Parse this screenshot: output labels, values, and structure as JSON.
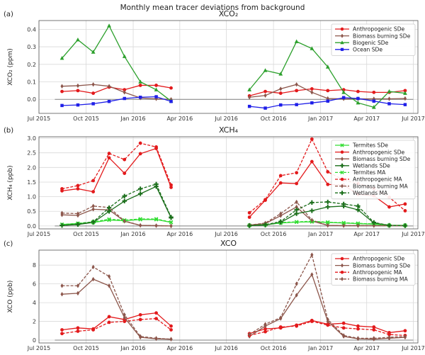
{
  "figure_title": "Monthly mean tracer deviations from background",
  "chart_data": [
    {
      "type": "line",
      "panel_label": "(a)",
      "title": "XCO₂",
      "ylabel": "XCO₂ (ppm)",
      "ylim": [
        -0.08,
        0.45
      ],
      "yticks": [
        0.0,
        0.1,
        0.2,
        0.3,
        0.4
      ],
      "ytick_labels": [
        "0.0",
        "0.1",
        "0.2",
        "0.3",
        "0.4"
      ],
      "xlim": [
        "2015-07-01",
        "2017-07-10"
      ],
      "xticks": [
        "Jul 2015",
        "Oct 2015",
        "Jan 2016",
        "Apr 2016",
        "Jul 2016",
        "Oct 2016",
        "Jan 2017",
        "Apr 2017",
        "Jul 2017"
      ],
      "grid": true,
      "legend_position": "top-right",
      "series": [
        {
          "name": "Anthropogenic SDe",
          "color": "#e31a1c",
          "marker": "circle",
          "dashed": false,
          "x": [
            "2015-08-15",
            "2015-09-15",
            "2015-10-15",
            "2015-11-15",
            "2015-12-15",
            "2016-01-15",
            "2016-02-15",
            "2016-03-15",
            "2016-08-15",
            "2016-09-15",
            "2016-10-15",
            "2016-11-15",
            "2016-12-15",
            "2017-01-15",
            "2017-02-15",
            "2017-03-15",
            "2017-04-15",
            "2017-05-15",
            "2017-06-15"
          ],
          "y": [
            0.045,
            0.05,
            0.035,
            0.07,
            0.055,
            0.08,
            0.08,
            0.065,
            0.02,
            0.045,
            0.035,
            0.05,
            0.06,
            0.05,
            0.055,
            0.045,
            0.04,
            0.04,
            0.05
          ]
        },
        {
          "name": "Biomass burning SDe",
          "color": "#8c564b",
          "marker": "diamond",
          "dashed": false,
          "x": [
            "2015-08-15",
            "2015-09-15",
            "2015-10-15",
            "2015-11-15",
            "2015-12-15",
            "2016-01-15",
            "2016-02-15",
            "2016-03-15",
            "2016-08-15",
            "2016-09-15",
            "2016-10-15",
            "2016-11-15",
            "2016-12-15",
            "2017-01-15",
            "2017-02-15",
            "2017-03-15",
            "2017-04-15",
            "2017-05-15",
            "2017-06-15"
          ],
          "y": [
            0.075,
            0.078,
            0.085,
            0.075,
            0.04,
            0.008,
            0.003,
            0.0,
            0.012,
            0.022,
            0.06,
            0.085,
            0.04,
            0.005,
            0.003,
            0.003,
            0.003,
            0.003,
            0.005
          ]
        },
        {
          "name": "Biogenic SDe",
          "color": "#2ca02c",
          "marker": "triangle",
          "dashed": false,
          "x": [
            "2015-08-15",
            "2015-09-15",
            "2015-10-15",
            "2015-11-15",
            "2015-12-15",
            "2016-01-15",
            "2016-02-15",
            "2016-03-15",
            "2016-08-15",
            "2016-09-15",
            "2016-10-15",
            "2016-11-15",
            "2016-12-15",
            "2017-01-15",
            "2017-02-15",
            "2017-03-15",
            "2017-04-15",
            "2017-05-15",
            "2017-06-15"
          ],
          "y": [
            0.235,
            0.34,
            0.27,
            0.42,
            0.245,
            0.1,
            0.055,
            -0.01,
            0.055,
            0.165,
            0.145,
            0.33,
            0.29,
            0.185,
            0.04,
            -0.02,
            -0.045,
            0.045,
            0.035
          ]
        },
        {
          "name": "Ocean SDe",
          "color": "#1f1fe8",
          "marker": "square",
          "dashed": false,
          "x": [
            "2015-08-15",
            "2015-09-15",
            "2015-10-15",
            "2015-11-15",
            "2015-12-15",
            "2016-01-15",
            "2016-02-15",
            "2016-03-15",
            "2016-08-15",
            "2016-09-15",
            "2016-10-15",
            "2016-11-15",
            "2016-12-15",
            "2017-01-15",
            "2017-02-15",
            "2017-03-15",
            "2017-04-15",
            "2017-05-15",
            "2017-06-15"
          ],
          "y": [
            -0.035,
            -0.032,
            -0.025,
            -0.012,
            0.005,
            0.012,
            0.015,
            -0.012,
            -0.04,
            -0.05,
            -0.032,
            -0.03,
            -0.02,
            -0.01,
            0.01,
            0.005,
            -0.01,
            -0.025,
            -0.03
          ]
        }
      ]
    },
    {
      "type": "line",
      "panel_label": "(b)",
      "title": "XCH₄",
      "ylabel": "XCH₄ (ppb)",
      "ylim": [
        -0.1,
        3.05
      ],
      "yticks": [
        0.0,
        0.5,
        1.0,
        1.5,
        2.0,
        2.5,
        3.0
      ],
      "ytick_labels": [
        "0.0",
        "0.5",
        "1.0",
        "1.5",
        "2.0",
        "2.5",
        "3.0"
      ],
      "xlim": [
        "2015-07-01",
        "2017-07-10"
      ],
      "xticks": [
        "Jul 2015",
        "Oct 2015",
        "Jan 2016",
        "Apr 2016",
        "Jul 2016",
        "Oct 2016",
        "Jan 2017",
        "Apr 2017",
        "Jul 2017"
      ],
      "grid": true,
      "legend_position": "top-right",
      "series": [
        {
          "name": "Termites SDe",
          "color": "#33dd33",
          "marker": "x",
          "dashed": false,
          "x": [
            "2015-08-15",
            "2015-09-15",
            "2015-10-15",
            "2015-11-15",
            "2015-12-15",
            "2016-01-15",
            "2016-02-15",
            "2016-03-15",
            "2016-08-15",
            "2016-09-15",
            "2016-10-15",
            "2016-11-15",
            "2016-12-15",
            "2017-01-15",
            "2017-02-15",
            "2017-03-15",
            "2017-04-15",
            "2017-05-15",
            "2017-06-15"
          ],
          "y": [
            0.05,
            0.08,
            0.12,
            0.2,
            0.18,
            0.22,
            0.22,
            0.12,
            0.02,
            0.04,
            0.1,
            0.13,
            0.14,
            0.12,
            0.1,
            0.08,
            0.06,
            0.02,
            0.02
          ]
        },
        {
          "name": "Anthropogenic SDe",
          "color": "#e31a1c",
          "marker": "circle",
          "dashed": false,
          "x": [
            "2015-08-15",
            "2015-09-15",
            "2015-10-15",
            "2015-11-15",
            "2015-12-15",
            "2016-01-15",
            "2016-02-15",
            "2016-03-15",
            "2016-08-15",
            "2016-09-15",
            "2016-10-15",
            "2016-11-15",
            "2016-12-15",
            "2017-01-15",
            "2017-02-15",
            "2017-03-15",
            "2017-04-15",
            "2017-05-15",
            "2017-06-15"
          ],
          "y": [
            1.2,
            1.27,
            1.17,
            2.33,
            1.8,
            2.47,
            2.65,
            1.32,
            0.3,
            0.88,
            1.47,
            1.45,
            2.2,
            1.42,
            1.4,
            1.08,
            1.03,
            0.65,
            0.75
          ]
        },
        {
          "name": "Biomass burning SDe",
          "color": "#8c564b",
          "marker": "diamond",
          "dashed": false,
          "x": [
            "2015-08-15",
            "2015-09-15",
            "2015-10-15",
            "2015-11-15",
            "2015-12-15",
            "2016-01-15",
            "2016-02-15",
            "2016-03-15",
            "2016-08-15",
            "2016-09-15",
            "2016-10-15",
            "2016-11-15",
            "2016-12-15",
            "2017-01-15",
            "2017-02-15",
            "2017-03-15",
            "2017-04-15",
            "2017-05-15",
            "2017-06-15"
          ],
          "y": [
            0.38,
            0.36,
            0.57,
            0.55,
            0.16,
            0.02,
            0.01,
            0.0,
            0.03,
            0.08,
            0.35,
            0.65,
            0.17,
            0.02,
            0.01,
            0.01,
            0.01,
            0.01,
            0.01
          ]
        },
        {
          "name": "Wetlands SDe",
          "color": "#1a6e1a",
          "marker": "plus",
          "dashed": false,
          "x": [
            "2015-08-15",
            "2015-09-15",
            "2015-10-15",
            "2015-11-15",
            "2015-12-15",
            "2016-01-15",
            "2016-02-15",
            "2016-03-15",
            "2016-08-15",
            "2016-09-15",
            "2016-10-15",
            "2016-11-15",
            "2016-12-15",
            "2017-01-15",
            "2017-02-15",
            "2017-03-15",
            "2017-04-15",
            "2017-05-15",
            "2017-06-15"
          ],
          "y": [
            0.02,
            0.05,
            0.12,
            0.5,
            0.85,
            1.1,
            1.35,
            0.28,
            0.01,
            0.03,
            0.12,
            0.42,
            0.52,
            0.65,
            0.68,
            0.55,
            0.1,
            0.02,
            0.01
          ]
        },
        {
          "name": "Termites MA",
          "color": "#33dd33",
          "marker": "x",
          "dashed": true,
          "x": [
            "2015-08-15",
            "2015-09-15",
            "2015-10-15",
            "2015-11-15",
            "2015-12-15",
            "2016-01-15",
            "2016-02-15",
            "2016-03-15",
            "2016-08-15",
            "2016-09-15",
            "2016-10-15",
            "2016-11-15",
            "2016-12-15",
            "2017-01-15",
            "2017-02-15",
            "2017-03-15",
            "2017-04-15",
            "2017-05-15",
            "2017-06-15"
          ],
          "y": [
            0.05,
            0.09,
            0.14,
            0.23,
            0.2,
            0.24,
            0.24,
            0.13,
            0.02,
            0.05,
            0.12,
            0.14,
            0.16,
            0.13,
            0.11,
            0.09,
            0.07,
            0.02,
            0.02
          ]
        },
        {
          "name": "Anthropogenic MA",
          "color": "#e31a1c",
          "marker": "circle",
          "dashed": true,
          "x": [
            "2015-08-15",
            "2015-09-15",
            "2015-10-15",
            "2015-11-15",
            "2015-12-15",
            "2016-01-15",
            "2016-02-15",
            "2016-03-15",
            "2016-08-15",
            "2016-09-15",
            "2016-10-15",
            "2016-11-15",
            "2016-12-15",
            "2017-01-15",
            "2017-02-15",
            "2017-03-15",
            "2017-04-15",
            "2017-05-15",
            "2017-06-15"
          ],
          "y": [
            1.27,
            1.38,
            1.55,
            2.48,
            2.27,
            2.83,
            2.7,
            1.4,
            0.45,
            0.9,
            1.72,
            1.82,
            2.97,
            1.85,
            1.57,
            1.45,
            1.28,
            0.98,
            0.52
          ]
        },
        {
          "name": "Biomass burning MA",
          "color": "#8c564b",
          "marker": "diamond",
          "dashed": true,
          "x": [
            "2015-08-15",
            "2015-09-15",
            "2015-10-15",
            "2015-11-15",
            "2015-12-15",
            "2016-01-15",
            "2016-02-15",
            "2016-03-15",
            "2016-08-15",
            "2016-09-15",
            "2016-10-15",
            "2016-11-15",
            "2016-12-15",
            "2017-01-15",
            "2017-02-15",
            "2017-03-15",
            "2017-04-15",
            "2017-05-15",
            "2017-06-15"
          ],
          "y": [
            0.44,
            0.42,
            0.68,
            0.63,
            0.17,
            0.02,
            0.01,
            0.0,
            0.03,
            0.1,
            0.42,
            0.82,
            0.2,
            0.02,
            0.01,
            0.01,
            0.01,
            0.01,
            0.01
          ]
        },
        {
          "name": "Wetlands MA",
          "color": "#1a6e1a",
          "marker": "plus",
          "dashed": true,
          "x": [
            "2015-08-15",
            "2015-09-15",
            "2015-10-15",
            "2015-11-15",
            "2015-12-15",
            "2016-01-15",
            "2016-02-15",
            "2016-03-15",
            "2016-08-15",
            "2016-09-15",
            "2016-10-15",
            "2016-11-15",
            "2016-12-15",
            "2017-01-15",
            "2017-02-15",
            "2017-03-15",
            "2017-04-15",
            "2017-05-15",
            "2017-06-15"
          ],
          "y": [
            0.02,
            0.06,
            0.14,
            0.62,
            1.02,
            1.27,
            1.43,
            0.3,
            0.01,
            0.04,
            0.15,
            0.55,
            0.8,
            0.82,
            0.75,
            0.68,
            0.12,
            0.02,
            0.01
          ]
        }
      ]
    },
    {
      "type": "line",
      "panel_label": "(c)",
      "title": "XCO",
      "ylabel": "XCO (ppb)",
      "ylim": [
        -0.3,
        9.6
      ],
      "yticks": [
        0,
        2,
        4,
        6,
        8
      ],
      "ytick_labels": [
        "0",
        "2",
        "4",
        "6",
        "8"
      ],
      "xlim": [
        "2015-07-01",
        "2017-07-10"
      ],
      "xticks": [
        "Jul 2015",
        "Oct 2015",
        "Jan 2016",
        "Apr 2016",
        "Jul 2016",
        "Oct 2016",
        "Jan 2017",
        "Apr 2017",
        "Jul 2017"
      ],
      "grid": true,
      "legend_position": "top-right",
      "series": [
        {
          "name": "Anthropogenic SDe",
          "color": "#e31a1c",
          "marker": "circle",
          "dashed": false,
          "x": [
            "2015-08-15",
            "2015-09-15",
            "2015-10-15",
            "2015-11-15",
            "2015-12-15",
            "2016-01-15",
            "2016-02-15",
            "2016-03-15",
            "2016-08-15",
            "2016-09-15",
            "2016-10-15",
            "2016-11-15",
            "2016-12-15",
            "2017-01-15",
            "2017-02-15",
            "2017-03-15",
            "2017-04-15",
            "2017-05-15",
            "2017-06-15"
          ],
          "y": [
            1.1,
            1.3,
            1.2,
            2.5,
            2.2,
            2.7,
            2.9,
            1.5,
            0.7,
            1.2,
            1.3,
            1.6,
            2.1,
            1.7,
            1.8,
            1.5,
            1.4,
            0.8,
            1.0
          ]
        },
        {
          "name": "Biomass burning SDe",
          "color": "#8c564b",
          "marker": "diamond",
          "dashed": false,
          "x": [
            "2015-08-15",
            "2015-09-15",
            "2015-10-15",
            "2015-11-15",
            "2015-12-15",
            "2016-01-15",
            "2016-02-15",
            "2016-03-15",
            "2016-08-15",
            "2016-09-15",
            "2016-10-15",
            "2016-11-15",
            "2016-12-15",
            "2017-01-15",
            "2017-02-15",
            "2017-03-15",
            "2017-04-15",
            "2017-05-15",
            "2017-06-15"
          ],
          "y": [
            4.9,
            5.0,
            6.5,
            5.8,
            2.4,
            0.3,
            0.15,
            0.1,
            0.4,
            1.5,
            2.3,
            4.8,
            7.0,
            2.0,
            0.4,
            0.15,
            0.1,
            0.2,
            0.3
          ]
        },
        {
          "name": "Anthropogenic MA",
          "color": "#e31a1c",
          "marker": "circle",
          "dashed": true,
          "x": [
            "2015-08-15",
            "2015-09-15",
            "2015-10-15",
            "2015-11-15",
            "2015-12-15",
            "2016-01-15",
            "2016-02-15",
            "2016-03-15",
            "2016-08-15",
            "2016-09-15",
            "2016-10-15",
            "2016-11-15",
            "2016-12-15",
            "2017-01-15",
            "2017-02-15",
            "2017-03-15",
            "2017-04-15",
            "2017-05-15",
            "2017-06-15"
          ],
          "y": [
            0.7,
            0.95,
            1.1,
            1.9,
            2.0,
            2.2,
            2.3,
            1.1,
            0.5,
            0.9,
            1.4,
            1.5,
            2.0,
            1.6,
            1.3,
            1.2,
            1.1,
            0.6,
            0.5
          ]
        },
        {
          "name": "Biomass burning MA",
          "color": "#8c564b",
          "marker": "diamond",
          "dashed": true,
          "x": [
            "2015-08-15",
            "2015-09-15",
            "2015-10-15",
            "2015-11-15",
            "2015-12-15",
            "2016-01-15",
            "2016-02-15",
            "2016-03-15",
            "2016-08-15",
            "2016-09-15",
            "2016-10-15",
            "2016-11-15",
            "2016-12-15",
            "2017-01-15",
            "2017-02-15",
            "2017-03-15",
            "2017-04-15",
            "2017-05-15",
            "2017-06-15"
          ],
          "y": [
            5.8,
            5.8,
            7.8,
            6.8,
            2.7,
            0.4,
            0.2,
            0.1,
            0.6,
            1.7,
            2.4,
            6.0,
            9.1,
            2.2,
            0.5,
            0.2,
            0.2,
            0.3,
            0.4
          ]
        }
      ]
    }
  ]
}
